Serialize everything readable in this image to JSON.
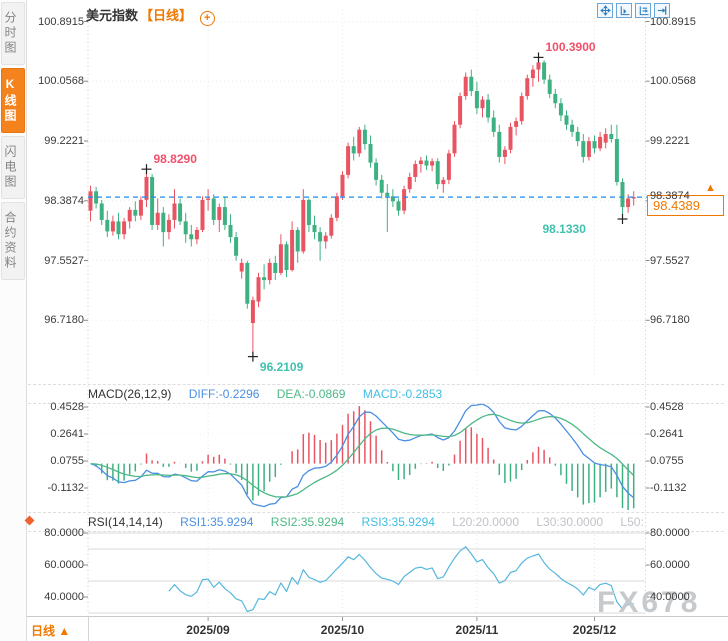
{
  "sidebar": {
    "tabs": [
      {
        "label": "分时图",
        "active": false
      },
      {
        "label": "K线图",
        "active": true
      },
      {
        "label": "闪电图",
        "active": false
      },
      {
        "label": "合约资料",
        "active": false
      }
    ]
  },
  "header": {
    "symbol": "美元指数",
    "period_tag": "【日线】",
    "add_indicator": "+"
  },
  "toolbar": {
    "icons": [
      "pan",
      "y-axis-left",
      "y-axis-right",
      "shift-right"
    ]
  },
  "main_axis": {
    "labels": [
      "100.8915",
      "100.0568",
      "99.2221",
      "98.3874",
      "97.5527",
      "96.7180"
    ]
  },
  "price_box": {
    "value": "98.4389",
    "arrow": "▲"
  },
  "macd": {
    "header": {
      "name": "MACD(26,12,9)",
      "diff": "DIFF:-0.2296",
      "dea": "DEA:-0.0869",
      "macd": "MACD:-0.2853"
    },
    "axis": [
      "0.4528",
      "0.2641",
      "0.0755",
      "-0.1132"
    ]
  },
  "rsi": {
    "header": {
      "name": "RSI(14,14,14)",
      "rsi1": "RSI1:35.9294",
      "rsi2": "RSI2:35.9294",
      "rsi3": "RSI3:35.9294",
      "l20": "L20:20.0000",
      "l30": "L30:30.0000",
      "l50": "L50:"
    },
    "axis": [
      "80.0000",
      "60.0000",
      "40.0000"
    ]
  },
  "bottom": {
    "period_tab": "日线 ▲",
    "dates": [
      "2025/09",
      "2025/10",
      "2025/11",
      "2025/12"
    ]
  },
  "watermark": "FX678",
  "colors": {
    "up_candle": "#e85462",
    "down_candle": "#3eb183",
    "dashed_line": "#1f8ceb",
    "accent_orange": "#f07800",
    "diff_line": "#4a8fe2",
    "dea_line": "#4db886",
    "rsi_line": "#56b7dd",
    "annotation_high": "#f0506a",
    "annotation_low": "#3fc2ae"
  },
  "chart_data": {
    "type": "candlestick",
    "title": "美元指数 日线",
    "last_price": 98.4389,
    "y_axis_ticks": [
      100.8915,
      100.0568,
      99.2221,
      98.3874,
      97.5527,
      96.718
    ],
    "macd_params": [
      26,
      12,
      9
    ],
    "macd_values": {
      "diff": -0.2296,
      "dea": -0.0869,
      "macd": -0.2853
    },
    "macd_axis_ticks": [
      0.4528,
      0.2641,
      0.0755,
      -0.1132
    ],
    "rsi_params": [
      14,
      14,
      14
    ],
    "rsi_values": {
      "rsi1": 35.9294,
      "rsi2": 35.9294,
      "rsi3": 35.9294
    },
    "rsi_axis_ticks": [
      80,
      60,
      40
    ],
    "rsi_gridlines": [
      80,
      70,
      50,
      30
    ],
    "x_ticks": [
      {
        "label": "2025/09",
        "index": 21
      },
      {
        "label": "2025/10",
        "index": 45
      },
      {
        "label": "2025/11",
        "index": 69
      },
      {
        "label": "2025/12",
        "index": 90
      }
    ],
    "annotations": [
      {
        "text": "98.8290",
        "price": 98.829,
        "candle_index": 10,
        "anchor": "high",
        "side": "right"
      },
      {
        "text": "100.3900",
        "price": 100.39,
        "candle_index": 80,
        "anchor": "high",
        "side": "right"
      },
      {
        "text": "96.2109",
        "price": 96.2109,
        "candle_index": 29,
        "anchor": "low",
        "side": "right"
      },
      {
        "text": "98.1330",
        "price": 98.133,
        "candle_index": 95,
        "anchor": "low",
        "side": "left"
      }
    ],
    "candles": [
      [
        98.25,
        98.6,
        98.1,
        98.52
      ],
      [
        98.52,
        98.58,
        98.28,
        98.35
      ],
      [
        98.35,
        98.4,
        98.05,
        98.12
      ],
      [
        98.12,
        98.25,
        97.88,
        97.96
      ],
      [
        97.96,
        98.18,
        97.9,
        98.1
      ],
      [
        98.1,
        98.22,
        97.85,
        97.92
      ],
      [
        97.92,
        98.15,
        97.85,
        98.1
      ],
      [
        98.1,
        98.3,
        98.0,
        98.26
      ],
      [
        98.26,
        98.38,
        98.1,
        98.18
      ],
      [
        98.18,
        98.45,
        98.12,
        98.4
      ],
      [
        98.4,
        98.83,
        98.3,
        98.72
      ],
      [
        98.72,
        98.76,
        97.98,
        98.05
      ],
      [
        98.05,
        98.42,
        97.98,
        98.22
      ],
      [
        98.22,
        98.3,
        97.75,
        97.95
      ],
      [
        97.95,
        98.2,
        97.85,
        98.12
      ],
      [
        98.12,
        98.55,
        98.0,
        98.35
      ],
      [
        98.35,
        98.42,
        98.05,
        98.1
      ],
      [
        98.1,
        98.22,
        97.8,
        97.92
      ],
      [
        97.92,
        98.05,
        97.75,
        97.85
      ],
      [
        97.85,
        98.02,
        97.78,
        97.98
      ],
      [
        97.98,
        98.45,
        97.95,
        98.4
      ],
      [
        98.4,
        98.55,
        98.25,
        98.42
      ],
      [
        98.42,
        98.48,
        98.05,
        98.12
      ],
      [
        98.12,
        98.35,
        97.95,
        98.3
      ],
      [
        98.3,
        98.45,
        97.98,
        98.05
      ],
      [
        98.05,
        98.2,
        97.8,
        97.88
      ],
      [
        97.88,
        97.95,
        97.55,
        97.62
      ],
      [
        97.4,
        97.58,
        97.3,
        97.52
      ],
      [
        97.52,
        97.55,
        96.88,
        96.95
      ],
      [
        96.68,
        97.05,
        96.211,
        97.0
      ],
      [
        96.98,
        97.38,
        96.9,
        97.32
      ],
      [
        97.32,
        97.5,
        97.15,
        97.28
      ],
      [
        97.28,
        97.58,
        97.22,
        97.52
      ],
      [
        97.52,
        97.62,
        97.28,
        97.38
      ],
      [
        97.38,
        97.92,
        97.35,
        97.78
      ],
      [
        97.78,
        97.82,
        97.32,
        97.42
      ],
      [
        97.42,
        98.1,
        97.4,
        97.98
      ],
      [
        97.98,
        98.02,
        97.52,
        97.68
      ],
      [
        97.68,
        98.55,
        97.65,
        98.4
      ],
      [
        98.4,
        98.42,
        97.95,
        98.05
      ],
      [
        98.05,
        98.18,
        97.85,
        97.95
      ],
      [
        97.95,
        98.02,
        97.55,
        97.82
      ],
      [
        97.82,
        97.95,
        97.72,
        97.9
      ],
      [
        97.9,
        98.2,
        97.86,
        98.15
      ],
      [
        98.15,
        98.5,
        98.1,
        98.45
      ],
      [
        98.45,
        98.8,
        98.4,
        98.75
      ],
      [
        98.75,
        99.2,
        98.7,
        99.15
      ],
      [
        99.15,
        99.28,
        98.95,
        99.05
      ],
      [
        99.05,
        99.42,
        99.0,
        99.38
      ],
      [
        99.38,
        99.45,
        99.1,
        99.18
      ],
      [
        99.18,
        99.3,
        98.85,
        98.92
      ],
      [
        98.92,
        98.98,
        98.6,
        98.68
      ],
      [
        98.68,
        98.75,
        98.42,
        98.5
      ],
      [
        98.5,
        98.62,
        97.95,
        98.45
      ],
      [
        98.45,
        98.55,
        98.3,
        98.38
      ],
      [
        98.38,
        98.42,
        98.18,
        98.25
      ],
      [
        98.25,
        98.6,
        98.2,
        98.55
      ],
      [
        98.55,
        98.78,
        98.5,
        98.72
      ],
      [
        98.72,
        98.95,
        98.65,
        98.9
      ],
      [
        98.9,
        99.0,
        98.78,
        98.95
      ],
      [
        98.95,
        99.02,
        98.82,
        98.88
      ],
      [
        98.88,
        98.98,
        98.8,
        98.94
      ],
      [
        98.94,
        98.98,
        98.55,
        98.62
      ],
      [
        98.62,
        98.72,
        98.5,
        98.68
      ],
      [
        98.68,
        99.1,
        98.62,
        99.05
      ],
      [
        99.05,
        99.5,
        99.0,
        99.45
      ],
      [
        99.45,
        99.9,
        99.4,
        99.85
      ],
      [
        99.85,
        100.18,
        99.8,
        100.12
      ],
      [
        100.12,
        100.22,
        99.85,
        99.92
      ],
      [
        99.92,
        100.05,
        99.6,
        99.68
      ],
      [
        99.68,
        99.85,
        99.55,
        99.8
      ],
      [
        99.8,
        99.88,
        99.48,
        99.55
      ],
      [
        99.55,
        99.65,
        99.28,
        99.35
      ],
      [
        99.35,
        99.45,
        98.92,
        99.0
      ],
      [
        99.0,
        99.15,
        98.9,
        99.1
      ],
      [
        99.1,
        99.48,
        99.05,
        99.42
      ],
      [
        99.42,
        99.55,
        99.3,
        99.5
      ],
      [
        99.5,
        99.9,
        99.45,
        99.85
      ],
      [
        99.85,
        100.15,
        99.8,
        100.1
      ],
      [
        100.1,
        100.28,
        99.98,
        100.22
      ],
      [
        100.22,
        100.39,
        100.05,
        100.32
      ],
      [
        100.32,
        100.35,
        100.02,
        100.08
      ],
      [
        100.08,
        100.15,
        99.82,
        99.88
      ],
      [
        99.88,
        99.95,
        99.68,
        99.75
      ],
      [
        99.75,
        99.82,
        99.5,
        99.58
      ],
      [
        99.58,
        99.65,
        99.38,
        99.45
      ],
      [
        99.45,
        99.52,
        99.28,
        99.35
      ],
      [
        99.35,
        99.42,
        99.15,
        99.22
      ],
      [
        99.22,
        99.32,
        98.92,
        99.0
      ],
      [
        99.0,
        99.28,
        98.95,
        99.22
      ],
      [
        99.22,
        99.3,
        99.05,
        99.12
      ],
      [
        99.12,
        99.35,
        99.08,
        99.28
      ],
      [
        99.2,
        99.4,
        99.12,
        99.32
      ],
      [
        99.32,
        99.45,
        99.2,
        99.25
      ],
      [
        99.25,
        99.45,
        98.6,
        98.65
      ],
      [
        98.65,
        98.7,
        98.133,
        98.3
      ],
      [
        98.3,
        98.48,
        98.22,
        98.42
      ],
      [
        98.42,
        98.52,
        98.32,
        98.44
      ]
    ]
  }
}
